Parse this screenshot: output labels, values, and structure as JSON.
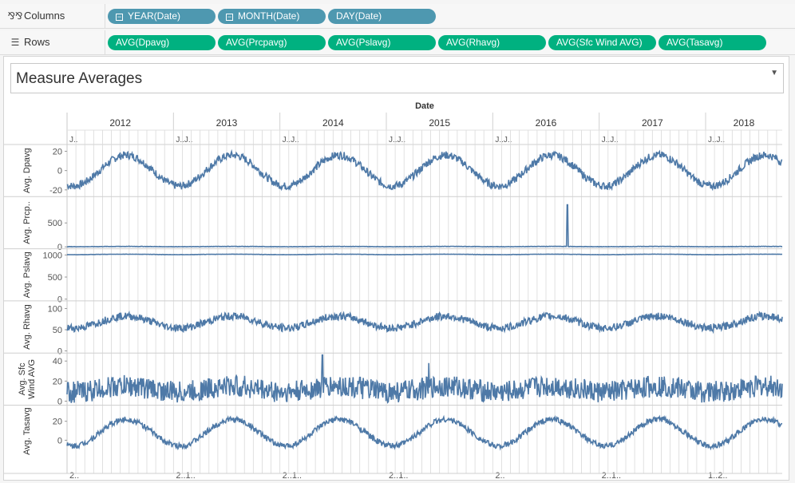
{
  "shelves": {
    "columns": {
      "icon": "columns-icon",
      "label": "Columns",
      "pills": [
        {
          "label": "YEAR(Date)",
          "collapse": true
        },
        {
          "label": "MONTH(Date)",
          "collapse": true
        },
        {
          "label": "DAY(Date)",
          "collapse": false
        }
      ]
    },
    "rows": {
      "icon": "rows-icon",
      "label": "Rows",
      "pills": [
        {
          "label": "AVG(Dpavg)"
        },
        {
          "label": "AVG(Prcpavg)"
        },
        {
          "label": "AVG(Pslavg)"
        },
        {
          "label": "AVG(Rhavg)"
        },
        {
          "label": "AVG(Sfc Wind AVG)"
        },
        {
          "label": "AVG(Tasavg)"
        }
      ]
    }
  },
  "sheet": {
    "title": "Measure Averages",
    "dropdown_icon": "triangle-down-icon",
    "colors": {
      "line": "#4e79a7",
      "dimension_pill": "#4e98b0",
      "measure_pill": "#00b180",
      "grid": "#d9d9d9"
    }
  },
  "chart_data": {
    "type": "line",
    "x_axis_title": "Date",
    "years": [
      "2012",
      "2013",
      "2014",
      "2015",
      "2016",
      "2017",
      "2018"
    ],
    "month_header_labels": [
      "J..",
      "J..J..",
      "J..J..",
      "J..J..",
      "J..J..",
      "J..J..",
      "J..J.."
    ],
    "bottom_axis_labels": [
      "2..",
      "2..1..",
      "2..1..",
      "2..1..",
      "2..",
      "2..1..",
      "1..2.."
    ],
    "panes": [
      {
        "measure": "Dpavg",
        "ylabel": "Avg. Dpavg",
        "ticks": [
          20,
          0,
          -20
        ],
        "ylim": [
          -27,
          27
        ],
        "series": {
          "base": 0,
          "amp": 16,
          "noise": 4,
          "period_years": 1
        }
      },
      {
        "measure": "Prcpavg",
        "ylabel": "Avg. Prcp..",
        "ticks": [
          500,
          0
        ],
        "ylim": [
          -40,
          1050
        ],
        "series": {
          "base": 6,
          "amp": 3,
          "noise": 4,
          "spike_year": 2016.7,
          "spike_value": 880
        }
      },
      {
        "measure": "Pslavg",
        "ylabel": "Avg. Pslavg",
        "ticks": [
          1000,
          500,
          0
        ],
        "ylim": [
          -40,
          1140
        ],
        "series": {
          "base": 1012,
          "amp": 5,
          "noise": 3
        }
      },
      {
        "measure": "Rhavg",
        "ylabel": "Avg. Rhavg",
        "ticks": [
          100,
          50,
          0
        ],
        "ylim": [
          -5,
          118
        ],
        "series": {
          "base": 68,
          "amp": 14,
          "noise": 9,
          "period_years": 1
        }
      },
      {
        "measure": "Sfc Wind AVG",
        "ylabel": "Avg. Sfc Wind AVG",
        "ticks": [
          40,
          20,
          0
        ],
        "ylim": [
          -4,
          48
        ],
        "series": {
          "base": 12,
          "amp": 3,
          "noise": 11,
          "spikes": [
            {
              "year": 2014.4,
              "value": 46
            },
            {
              "year": 2015.4,
              "value": 38
            }
          ]
        }
      },
      {
        "measure": "Tasavg",
        "ylabel": "Avg. Tasavg",
        "ticks": [
          20,
          0
        ],
        "ylim": [
          -18,
          37
        ],
        "series": {
          "base": 8,
          "amp": 14,
          "noise": 3,
          "period_years": 1
        }
      }
    ]
  }
}
